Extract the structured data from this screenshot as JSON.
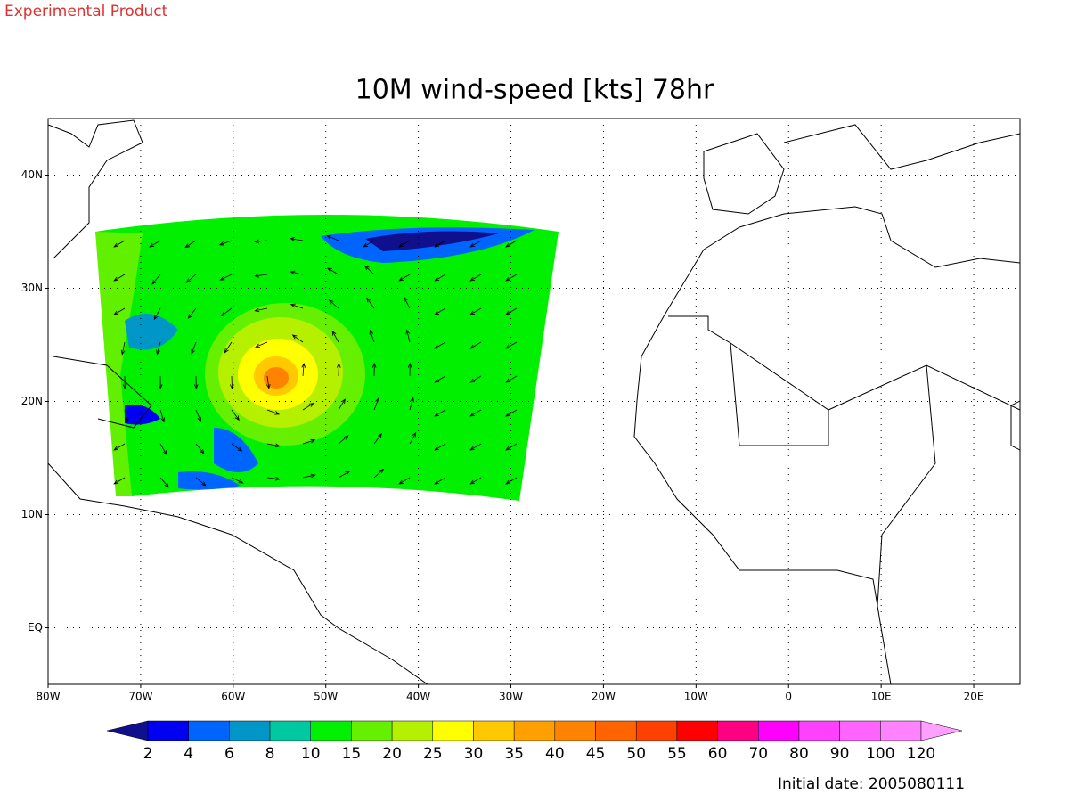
{
  "header": "Experimental Product",
  "map": {
    "title": "10M wind-speed [kts] 78hr",
    "xlim": [
      -80,
      25
    ],
    "ylim": [
      -5,
      45
    ],
    "xticks": [
      {
        "value": -80,
        "label": "80W"
      },
      {
        "value": -70,
        "label": "70W"
      },
      {
        "value": -60,
        "label": "60W"
      },
      {
        "value": -50,
        "label": "50W"
      },
      {
        "value": -40,
        "label": "40W"
      },
      {
        "value": -30,
        "label": "30W"
      },
      {
        "value": -20,
        "label": "20W"
      },
      {
        "value": -10,
        "label": "10W"
      },
      0,
      {
        "value": 10,
        "label": "10E"
      },
      {
        "value": 20,
        "label": "20E"
      }
    ],
    "yticks": [
      {
        "value": 40,
        "label": "40N"
      },
      {
        "value": 30,
        "label": "30N"
      },
      {
        "value": 20,
        "label": "20N"
      },
      {
        "value": 10,
        "label": "10N"
      },
      {
        "value": 0,
        "label": "EQ"
      }
    ],
    "grid": true
  },
  "colorbar": {
    "levels": [
      2,
      4,
      6,
      8,
      10,
      15,
      20,
      25,
      30,
      35,
      40,
      45,
      50,
      55,
      60,
      70,
      80,
      90,
      100,
      120
    ],
    "colors": [
      "#10108c",
      "#0000f0",
      "#0064ff",
      "#0096c8",
      "#00c8a0",
      "#00f000",
      "#64f000",
      "#b4f000",
      "#ffff00",
      "#ffc800",
      "#ffa000",
      "#ff8200",
      "#ff6400",
      "#ff4000",
      "#ff0000",
      "#ff0082",
      "#ff00ff",
      "#ff40ff",
      "#ff64ff",
      "#ff82ff",
      "#ffa0ff"
    ]
  },
  "footer": "Initial date: 2005080111"
}
